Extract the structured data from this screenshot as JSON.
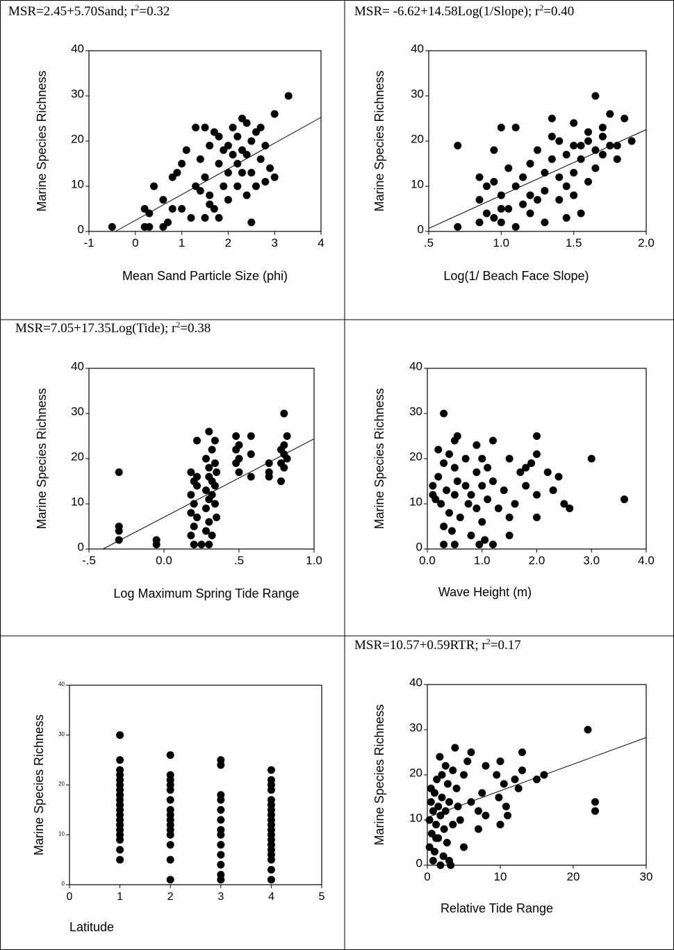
{
  "chart_data": [
    {
      "type": "scatter",
      "title": [
        "MSR=2.45+5.70Sand; r",
        "2",
        "=0.32"
      ],
      "x_label": "Mean Sand Particle Size (phi)",
      "y_label": "Marine Species Richness",
      "color": "#000000",
      "grid": false,
      "xlim": [
        -1,
        4
      ],
      "ylim": [
        0,
        40
      ],
      "xticks": [
        -1,
        0,
        1,
        2,
        3,
        4
      ],
      "yticks": [
        0,
        10,
        20,
        30,
        40
      ],
      "fit": {
        "intercept": 2.45,
        "slope": 5.7
      },
      "x": [
        -0.5,
        0.2,
        0.2,
        0.3,
        0.3,
        0.4,
        0.6,
        0.6,
        0.7,
        0.8,
        0.8,
        0.9,
        1.0,
        1.0,
        1.1,
        1.2,
        1.3,
        1.3,
        1.4,
        1.4,
        1.5,
        1.5,
        1.5,
        1.6,
        1.6,
        1.7,
        1.7,
        1.8,
        1.8,
        1.8,
        1.9,
        1.9,
        2.0,
        2.0,
        2.0,
        2.1,
        2.1,
        2.2,
        2.2,
        2.2,
        2.3,
        2.3,
        2.3,
        2.4,
        2.4,
        2.4,
        2.5,
        2.5,
        2.5,
        2.6,
        2.6,
        2.7,
        2.7,
        2.8,
        2.8,
        2.9,
        3.0,
        3.0,
        3.3,
        1.6
      ],
      "values": [
        1,
        5,
        1,
        4,
        1,
        10,
        1,
        7,
        2,
        5,
        12,
        13,
        5,
        15,
        18,
        3,
        23,
        10,
        9,
        16,
        23,
        3,
        12,
        19,
        8,
        22,
        5,
        15,
        3,
        21,
        18,
        10,
        7,
        19,
        13,
        17,
        23,
        10,
        21,
        15,
        25,
        18,
        13,
        8,
        24,
        17,
        20,
        13,
        2,
        22,
        10,
        23,
        16,
        19,
        11,
        14,
        26,
        12,
        30,
        6
      ]
    },
    {
      "type": "scatter",
      "title": [
        "MSR= -6.62+14.58Log(1/Slope); r",
        "2",
        "=0.40"
      ],
      "x_label": "Log(1/ Beach Face Slope)",
      "y_label": "Marine Species Richness",
      "color": "#000000",
      "grid": false,
      "xlim": [
        0.5,
        2.0
      ],
      "ylim": [
        0,
        40
      ],
      "xticks": [
        {
          "value": 0.5,
          "label": ".5"
        },
        {
          "value": 1,
          "label": "1.0"
        },
        1.5,
        {
          "value": 2,
          "label": "2.0"
        }
      ],
      "yticks": [
        0,
        10,
        20,
        30,
        40
      ],
      "fit": {
        "intercept": -6.62,
        "slope": 14.58
      },
      "x": [
        0.7,
        0.7,
        0.85,
        0.85,
        0.85,
        0.9,
        0.9,
        0.95,
        0.95,
        1.0,
        1.0,
        1.0,
        1.05,
        1.05,
        1.1,
        1.1,
        1.1,
        1.15,
        1.15,
        1.2,
        1.2,
        1.25,
        1.25,
        1.3,
        1.3,
        1.3,
        1.35,
        1.35,
        1.4,
        1.4,
        1.4,
        1.45,
        1.45,
        1.5,
        1.5,
        1.5,
        1.55,
        1.55,
        1.55,
        1.6,
        1.6,
        1.6,
        1.65,
        1.65,
        1.65,
        1.7,
        1.7,
        1.75,
        1.75,
        1.8,
        1.8,
        1.85,
        1.9,
        1.45,
        1.2,
        1.0,
        0.95,
        1.35,
        1.5,
        1.7
      ],
      "values": [
        1,
        19,
        2,
        7,
        12,
        4,
        10,
        3,
        18,
        2,
        23,
        8,
        5,
        14,
        1,
        10,
        23,
        6,
        12,
        4,
        15,
        7,
        18,
        2,
        13,
        9,
        25,
        16,
        7,
        20,
        12,
        10,
        17,
        24,
        13,
        8,
        19,
        4,
        16,
        20,
        11,
        22,
        30,
        18,
        14,
        17,
        21,
        26,
        19,
        19,
        16,
        25,
        20,
        3,
        8,
        5,
        11,
        21,
        19,
        23
      ]
    },
    {
      "type": "scatter",
      "title": [
        "MSR=7.05+17.35Log(Tide); r",
        "2",
        "=0.38"
      ],
      "x_label": "Log Maximum Spring Tide Range",
      "y_label": "Marine Species Richness",
      "color": "#000000",
      "grid": false,
      "xlim": [
        -0.5,
        1.0
      ],
      "ylim": [
        0,
        40
      ],
      "xticks": [
        {
          "value": -0.5,
          "label": "-.5"
        },
        {
          "value": 0,
          "label": "0.0"
        },
        {
          "value": 0.5,
          "label": ".5"
        },
        {
          "value": 1,
          "label": "1.0"
        }
      ],
      "yticks": [
        0,
        10,
        20,
        30,
        40
      ],
      "fit": {
        "intercept": 7.05,
        "slope": 17.35
      },
      "x": [
        -0.3,
        -0.3,
        -0.3,
        -0.3,
        -0.05,
        -0.05,
        0.18,
        0.18,
        0.18,
        0.18,
        0.2,
        0.2,
        0.2,
        0.2,
        0.22,
        0.22,
        0.22,
        0.22,
        0.28,
        0.28,
        0.28,
        0.28,
        0.3,
        0.3,
        0.3,
        0.3,
        0.3,
        0.32,
        0.32,
        0.32,
        0.32,
        0.34,
        0.34,
        0.34,
        0.35,
        0.35,
        0.48,
        0.48,
        0.48,
        0.5,
        0.5,
        0.5,
        0.58,
        0.58,
        0.58,
        0.7,
        0.7,
        0.7,
        0.78,
        0.78,
        0.78,
        0.8,
        0.8,
        0.8,
        0.82,
        0.82,
        0.25,
        0.3,
        0.34,
        0.8
      ],
      "values": [
        17,
        5,
        4,
        2,
        2,
        1,
        17,
        12,
        8,
        3,
        15,
        10,
        5,
        1,
        24,
        14,
        7,
        16,
        20,
        13,
        9,
        4,
        26,
        18,
        11,
        6,
        1,
        22,
        15,
        12,
        3,
        19,
        10,
        14,
        7,
        17,
        25,
        22,
        19,
        20,
        23,
        17,
        25,
        21,
        16,
        19,
        16,
        17,
        15,
        22,
        19,
        30,
        21,
        18,
        25,
        20,
        1,
        16,
        24,
        23
      ]
    },
    {
      "type": "scatter",
      "x_label": "Wave Height (m)",
      "y_label": "Marine Species Richness",
      "color": "#000000",
      "grid": false,
      "xlim": [
        0,
        4
      ],
      "ylim": [
        0,
        40
      ],
      "xticks": [
        {
          "value": 0,
          "label": "0.0"
        },
        {
          "value": 1,
          "label": "1.0"
        },
        {
          "value": 2,
          "label": "2.0"
        },
        {
          "value": 3,
          "label": "3.0"
        },
        {
          "value": 4,
          "label": "4.0"
        }
      ],
      "yticks": [
        0,
        10,
        20,
        30,
        40
      ],
      "x": [
        0.1,
        0.1,
        0.15,
        0.2,
        0.2,
        0.25,
        0.3,
        0.3,
        0.3,
        0.3,
        0.35,
        0.4,
        0.4,
        0.45,
        0.5,
        0.5,
        0.5,
        0.5,
        0.55,
        0.55,
        0.6,
        0.7,
        0.7,
        0.75,
        0.8,
        0.8,
        0.9,
        0.9,
        0.9,
        0.95,
        1.0,
        1.0,
        1.0,
        1.05,
        1.1,
        1.1,
        1.2,
        1.2,
        1.2,
        1.3,
        1.4,
        1.5,
        1.5,
        1.5,
        1.6,
        1.7,
        1.8,
        1.8,
        1.9,
        2.0,
        2.0,
        2.0,
        2.0,
        2.2,
        2.3,
        2.4,
        2.5,
        2.6,
        3.0,
        3.6
      ],
      "values": [
        14,
        12,
        11,
        22,
        16,
        10,
        30,
        5,
        1,
        19,
        13,
        8,
        21,
        4,
        24,
        18,
        12,
        1,
        15,
        25,
        7,
        20,
        14,
        10,
        12,
        3,
        23,
        17,
        9,
        1,
        20,
        14,
        6,
        2,
        18,
        11,
        24,
        1,
        15,
        9,
        13,
        20,
        7,
        3,
        10,
        17,
        18,
        14,
        19,
        25,
        21,
        12,
        7,
        17,
        13,
        16,
        10,
        9,
        20,
        11
      ]
    },
    {
      "type": "scatter",
      "x_label": "Latitude",
      "y_label": "Marine Species Richness",
      "color": "#000000",
      "grid": false,
      "xlim": [
        0,
        5
      ],
      "ylim": [
        0,
        40
      ],
      "xticks": [
        0,
        1,
        2,
        3,
        4,
        5
      ],
      "yticks": [
        0,
        10,
        20,
        30,
        40
      ],
      "x": [
        1,
        1,
        1,
        1,
        1,
        1,
        1,
        1,
        1,
        1,
        1,
        1,
        1,
        1,
        1,
        1,
        1,
        1,
        1,
        2,
        2,
        2,
        2,
        2,
        2,
        2,
        2,
        2,
        2,
        2,
        2,
        2,
        2,
        2,
        3,
        3,
        3,
        3,
        3,
        3,
        3,
        3,
        3,
        3,
        3,
        3,
        3,
        4,
        4,
        4,
        4,
        4,
        4,
        4,
        4,
        4,
        4,
        4,
        4,
        4,
        4,
        4,
        4,
        4,
        4,
        4
      ],
      "values": [
        30,
        25,
        23,
        22,
        21,
        20,
        19,
        18,
        17,
        16,
        15,
        14,
        13,
        12,
        11,
        10,
        9,
        7,
        5,
        26,
        22,
        21,
        20,
        19,
        17,
        15,
        14,
        13,
        12,
        11,
        10,
        8,
        5,
        1,
        25,
        24,
        18,
        17,
        15,
        13,
        11,
        10,
        8,
        6,
        4,
        2,
        1,
        23,
        21,
        20,
        19,
        17,
        16,
        15,
        14,
        13,
        12,
        11,
        10,
        9,
        8,
        7,
        6,
        5,
        3,
        1
      ]
    },
    {
      "type": "scatter",
      "title": [
        "MSR=10.57+0.59RTR; r",
        "2",
        "=0.17"
      ],
      "x_label": "Relative Tide Range",
      "y_label": "Marine Species Richness",
      "color": "#000000",
      "grid": false,
      "xlim": [
        0,
        30
      ],
      "ylim": [
        0,
        40
      ],
      "xticks": [
        0,
        10,
        20,
        30
      ],
      "yticks": [
        0,
        10,
        20,
        30,
        40
      ],
      "fit": {
        "intercept": 10.57,
        "slope": 0.59
      },
      "x": [
        0.3,
        0.3,
        0.5,
        0.5,
        0.6,
        0.8,
        0.8,
        1.0,
        1.0,
        1.2,
        1.3,
        1.5,
        1.5,
        1.7,
        1.8,
        1.8,
        2.0,
        2.0,
        2.2,
        2.3,
        2.5,
        2.5,
        2.7,
        2.8,
        3.0,
        3.0,
        3.2,
        3.5,
        3.5,
        3.8,
        4.0,
        4.2,
        4.5,
        5.0,
        5.0,
        5.5,
        6.0,
        6.0,
        7.0,
        7.0,
        7.5,
        8.0,
        8.0,
        9.5,
        9.8,
        10.0,
        10.0,
        10.5,
        10.8,
        11.0,
        12.0,
        12.5,
        13.0,
        13.0,
        15.0,
        16.0,
        22.0,
        23.0,
        23.0,
        1.2
      ],
      "values": [
        4,
        10,
        14,
        17,
        7,
        1,
        12,
        16,
        3,
        9,
        19,
        6,
        13,
        24,
        0,
        11,
        20,
        15,
        2,
        8,
        22,
        12,
        5,
        18,
        1,
        14,
        0,
        21,
        9,
        26,
        17,
        13,
        10,
        20,
        4,
        23,
        25,
        14,
        12,
        8,
        16,
        11,
        22,
        20,
        15,
        9,
        23,
        18,
        13,
        11,
        19,
        17,
        25,
        21,
        19,
        20,
        30,
        14,
        12,
        6
      ]
    }
  ]
}
